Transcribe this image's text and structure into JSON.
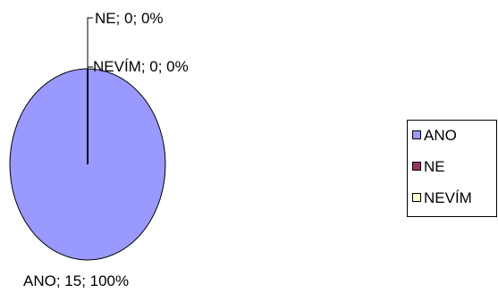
{
  "chart_data": {
    "type": "pie",
    "title": "",
    "categories": [
      "ANO",
      "NE",
      "NEVÍM"
    ],
    "values": [
      15,
      0,
      0
    ],
    "percents": [
      "100%",
      "0%",
      "0%"
    ],
    "data_labels": [
      "ANO; 15; 100%",
      "NE; 0; 0%",
      "NEVÍM; 0; 0%"
    ],
    "colors": [
      "#9999ff",
      "#993366",
      "#ffffcc"
    ],
    "legend": {
      "placement": "right",
      "entries": [
        "ANO",
        "NE",
        "NEVÍM"
      ]
    }
  }
}
